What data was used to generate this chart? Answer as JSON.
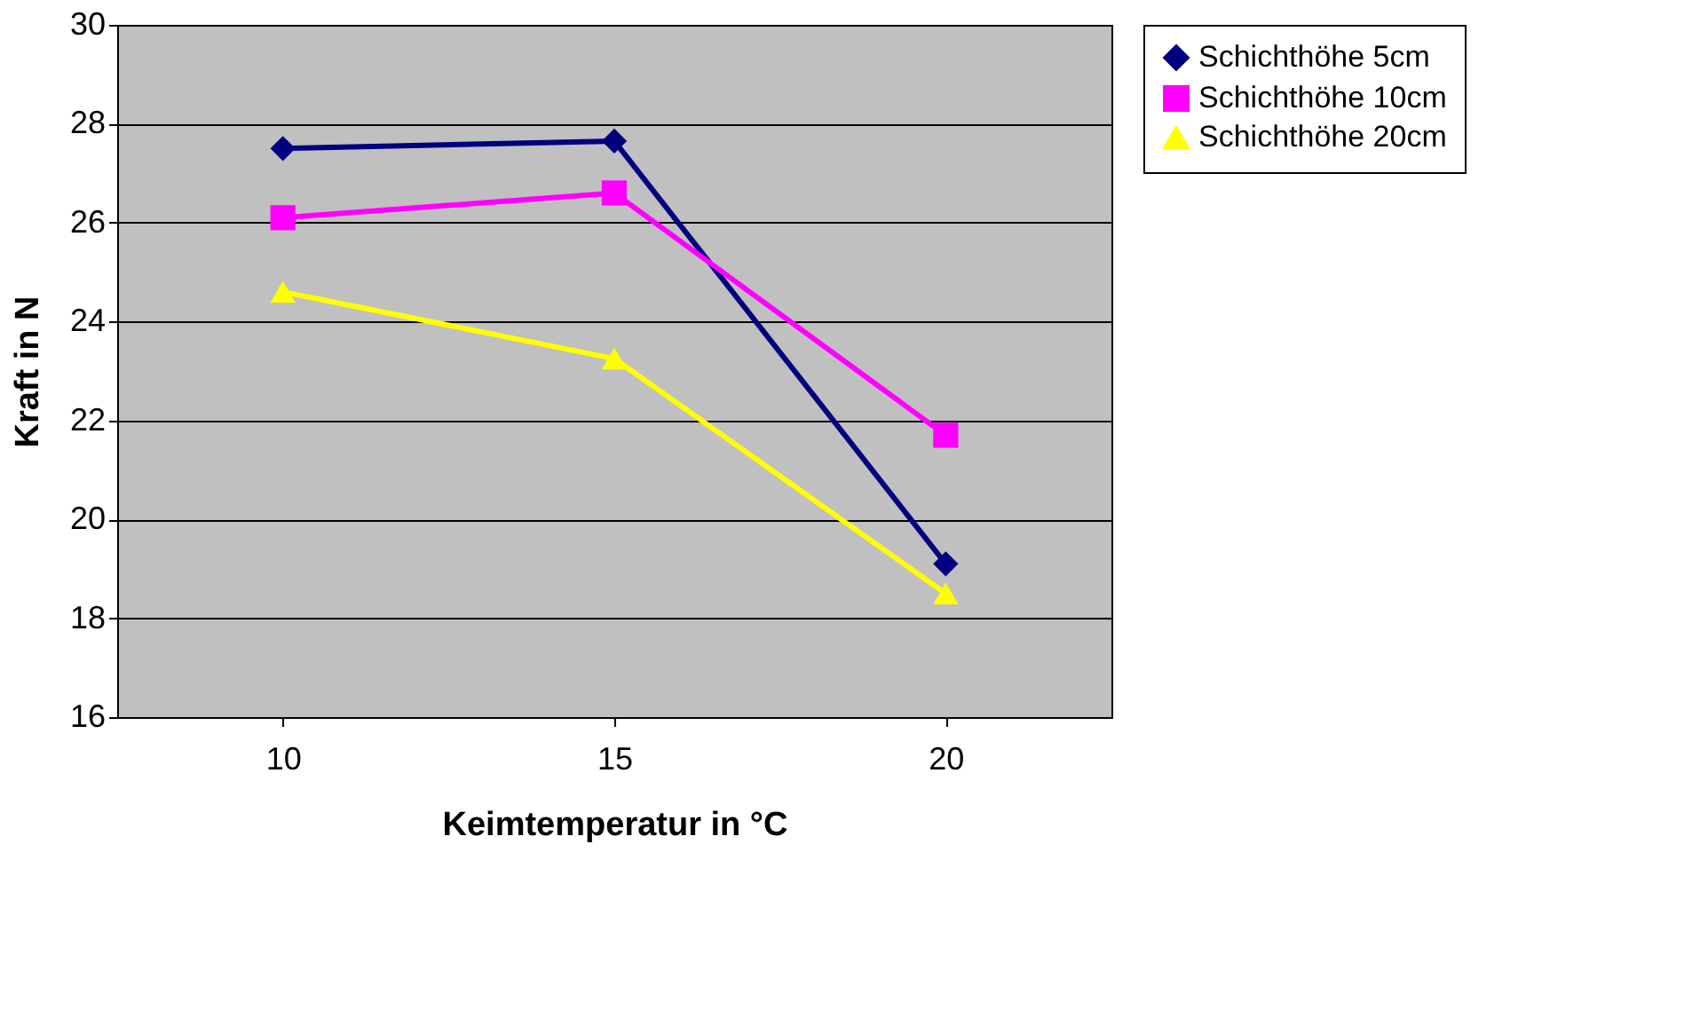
{
  "chart_data": {
    "type": "line",
    "xlabel": "Keimtemperatur in °C",
    "ylabel": "Kraft in N",
    "categories": [
      "10",
      "15",
      "20"
    ],
    "series": [
      {
        "name": "Schichthöhe 5cm",
        "color": "#000080",
        "marker": "diamond",
        "values": [
          27.5,
          27.65,
          19.1
        ]
      },
      {
        "name": "Schichthöhe 10cm",
        "color": "#ff00ff",
        "marker": "square",
        "values": [
          26.1,
          26.6,
          21.7
        ]
      },
      {
        "name": "Schichthöhe 20cm",
        "color": "#ffff00",
        "marker": "triangle",
        "values": [
          24.6,
          23.25,
          18.5
        ]
      }
    ],
    "ylim": [
      16,
      30
    ],
    "yticks": [
      16,
      18,
      20,
      22,
      24,
      26,
      28,
      30
    ],
    "grid": "y",
    "legend": "right",
    "line_style": "solid"
  }
}
